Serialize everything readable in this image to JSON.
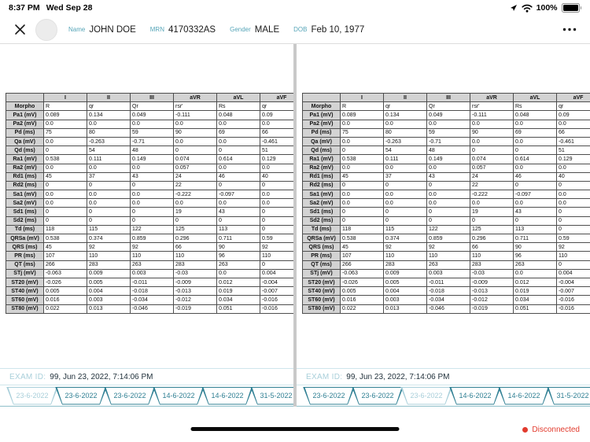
{
  "status_bar": {
    "time": "8:37 PM",
    "date": "Wed Sep 28",
    "battery_percent": "100%"
  },
  "patient_header": {
    "fields": [
      {
        "label": "Name",
        "value": "JOHN DOE"
      },
      {
        "label": "MRN",
        "value": "4170332AS"
      },
      {
        "label": "Gender",
        "value": "MALE"
      },
      {
        "label": "DOB",
        "value": "Feb 10, 1977"
      }
    ]
  },
  "measurements_table": {
    "columns": [
      "",
      "I",
      "II",
      "III",
      "aVR",
      "aVL",
      "aVF"
    ],
    "rows": [
      {
        "label": "Morpho",
        "values": [
          "R",
          "qr",
          "Qr",
          "rsr'",
          "Rs",
          "qr"
        ]
      },
      {
        "label": "Pa1 (mV)",
        "values": [
          "0.089",
          "0.134",
          "0.049",
          "-0.111",
          "0.048",
          "0.09"
        ]
      },
      {
        "label": "Pa2 (mV)",
        "values": [
          "0.0",
          "0.0",
          "0.0",
          "0.0",
          "0.0",
          "0.0"
        ]
      },
      {
        "label": "Pd (ms)",
        "values": [
          "75",
          "80",
          "59",
          "90",
          "69",
          "66"
        ]
      },
      {
        "label": "Qa (mV)",
        "values": [
          "0.0",
          "-0.263",
          "-0.71",
          "0.0",
          "0.0",
          "-0.461"
        ]
      },
      {
        "label": "Qd (ms)",
        "values": [
          "0",
          "54",
          "48",
          "0",
          "0",
          "51"
        ]
      },
      {
        "label": "Ra1 (mV)",
        "values": [
          "0.538",
          "0.111",
          "0.149",
          "0.074",
          "0.614",
          "0.129"
        ]
      },
      {
        "label": "Ra2 (mV)",
        "values": [
          "0.0",
          "0.0",
          "0.0",
          "0.057",
          "0.0",
          "0.0"
        ]
      },
      {
        "label": "Rd1 (ms)",
        "values": [
          "45",
          "37",
          "43",
          "24",
          "46",
          "40"
        ]
      },
      {
        "label": "Rd2 (ms)",
        "values": [
          "0",
          "0",
          "0",
          "22",
          "0",
          "0"
        ]
      },
      {
        "label": "Sa1 (mV)",
        "values": [
          "0.0",
          "0.0",
          "0.0",
          "-0.222",
          "-0.097",
          "0.0"
        ]
      },
      {
        "label": "Sa2 (mV)",
        "values": [
          "0.0",
          "0.0",
          "0.0",
          "0.0",
          "0.0",
          "0.0"
        ]
      },
      {
        "label": "Sd1 (ms)",
        "values": [
          "0",
          "0",
          "0",
          "19",
          "43",
          "0"
        ]
      },
      {
        "label": "Sd2 (ms)",
        "values": [
          "0",
          "0",
          "0",
          "0",
          "0",
          "0"
        ]
      },
      {
        "label": "Td (ms)",
        "values": [
          "118",
          "115",
          "122",
          "125",
          "113",
          "0"
        ]
      },
      {
        "label": "QRSa (mV)",
        "values": [
          "0.538",
          "0.374",
          "0.859",
          "0.296",
          "0.711",
          "0.59"
        ]
      },
      {
        "label": "QRS (ms)",
        "values": [
          "45",
          "92",
          "92",
          "66",
          "90",
          "92"
        ]
      },
      {
        "label": "PR (ms)",
        "values": [
          "107",
          "110",
          "110",
          "110",
          "96",
          "110"
        ]
      },
      {
        "label": "QT (ms)",
        "values": [
          "266",
          "283",
          "263",
          "283",
          "263",
          "0"
        ]
      },
      {
        "label": "STj (mV)",
        "values": [
          "-0.063",
          "0.009",
          "0.003",
          "-0.03",
          "0.0",
          "0.004"
        ]
      },
      {
        "label": "ST20 (mV)",
        "values": [
          "-0.026",
          "0.005",
          "-0.011",
          "-0.009",
          "0.012",
          "-0.004"
        ]
      },
      {
        "label": "ST40 (mV)",
        "values": [
          "0.005",
          "0.004",
          "-0.018",
          "-0.013",
          "0.019",
          "-0.007"
        ]
      },
      {
        "label": "ST60 (mV)",
        "values": [
          "0.016",
          "0.003",
          "-0.034",
          "-0.012",
          "0.034",
          "-0.016"
        ]
      },
      {
        "label": "ST80 (mV)",
        "values": [
          "0.022",
          "0.013",
          "-0.046",
          "-0.019",
          "0.051",
          "-0.016"
        ]
      }
    ]
  },
  "exam": {
    "label": "EXAM ID:",
    "value": "99,  Jun 23, 2022, 7:14:06 PM"
  },
  "exam_tabs": [
    "23-6-2022",
    "23-6-2022",
    "23-6-2022",
    "14-6-2022",
    "14-6-2022",
    "31-5-2022"
  ],
  "panels": {
    "left": {
      "selected_tab": 0
    },
    "right": {
      "selected_tab": 2
    }
  },
  "connection_status": "Disconnected",
  "colors": {
    "teal": "#56a5b8",
    "teal_light": "#a9cfda",
    "tab_teal": "#2f7f93",
    "red": "#e23b2e"
  }
}
